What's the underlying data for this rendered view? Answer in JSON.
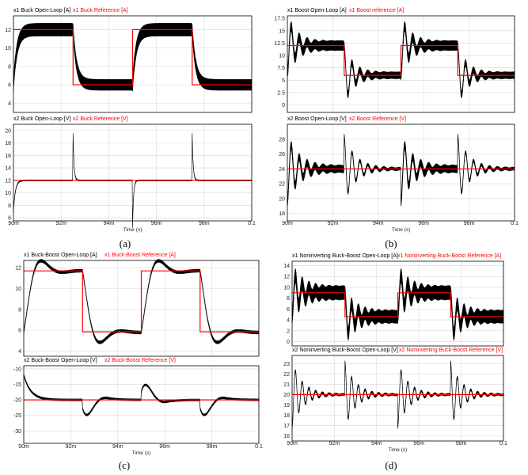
{
  "captions": [
    "(a)",
    "(b)",
    "(c)",
    "(d)"
  ],
  "chart_data": [
    {
      "type": "line",
      "panel": "(a)",
      "xlabel": "Time (s)",
      "x_ticks": [
        "90m",
        "92m",
        "94m",
        "96m",
        "98m",
        "0.1"
      ],
      "xlim": [
        0.09,
        0.1
      ],
      "subplots": [
        {
          "series": [
            {
              "name": "x1 Buck Open-Loop [A]",
              "color": "#000000"
            },
            {
              "name": "x1 Buck Reference [A]",
              "color": "#ff0000"
            }
          ],
          "ylim": [
            3,
            13.5
          ],
          "y_ticks": [
            4,
            6,
            8,
            10,
            12
          ],
          "reference": {
            "x": [
              0.09,
              0.0925,
              0.0925,
              0.095,
              0.095,
              0.0975,
              0.0975,
              0.1
            ],
            "y": [
              12,
              12,
              6,
              6,
              12,
              12,
              6,
              6
            ]
          }
        },
        {
          "series": [
            {
              "name": "x2 Buck Open-Loop [V]",
              "color": "#000000"
            },
            {
              "name": "x2 Buck Reference [V]",
              "color": "#ff0000"
            }
          ],
          "ylim": [
            5.5,
            21
          ],
          "y_ticks": [
            6,
            8,
            10,
            12,
            14,
            16,
            18,
            20
          ],
          "reference": {
            "x": [
              0.09,
              0.1
            ],
            "y": [
              12,
              12
            ]
          }
        }
      ]
    },
    {
      "type": "line",
      "panel": "(b)",
      "xlabel": "Time (s)",
      "x_ticks": [
        "90m",
        "92m",
        "94m",
        "96m",
        "98m",
        "0.1"
      ],
      "xlim": [
        0.09,
        0.1
      ],
      "subplots": [
        {
          "series": [
            {
              "name": "x1 Boost Open-Loop [A]",
              "color": "#000000"
            },
            {
              "name": "x1 Boost reference [A]",
              "color": "#ff0000"
            }
          ],
          "ylim": [
            -1.5,
            18
          ],
          "y_ticks": [
            0,
            2.5,
            5,
            7.5,
            10,
            12.5,
            15,
            17.5
          ],
          "reference": {
            "x": [
              0.09,
              0.0925,
              0.0925,
              0.095,
              0.095,
              0.0975,
              0.0975,
              0.1
            ],
            "y": [
              12,
              12,
              6,
              6,
              12,
              12,
              6,
              6
            ]
          }
        },
        {
          "series": [
            {
              "name": "x2 Boost Open-Loop [V]",
              "color": "#000000"
            },
            {
              "name": "x2 Boost Reference [V]",
              "color": "#ff0000"
            }
          ],
          "ylim": [
            17,
            30
          ],
          "y_ticks": [
            18,
            20,
            22,
            24,
            26,
            28
          ],
          "reference": {
            "x": [
              0.09,
              0.1
            ],
            "y": [
              24,
              24
            ]
          }
        }
      ]
    },
    {
      "type": "line",
      "panel": "(c)",
      "xlabel": "Time (s)",
      "x_ticks": [
        "90m",
        "92m",
        "94m",
        "96m",
        "98m",
        "0.1"
      ],
      "xlim": [
        0.09,
        0.1
      ],
      "subplots": [
        {
          "series": [
            {
              "name": "x1 Buck-Boost Open-Loop [A]",
              "color": "#000000"
            },
            {
              "name": "x1 Buck-Boost Reference [A]",
              "color": "#ff0000"
            }
          ],
          "ylim": [
            3.5,
            12.7
          ],
          "y_ticks": [
            4,
            6,
            8,
            10,
            12
          ],
          "reference": {
            "x": [
              0.09,
              0.0925,
              0.0925,
              0.095,
              0.095,
              0.0975,
              0.0975,
              0.1
            ],
            "y": [
              11.7,
              11.7,
              5.85,
              5.85,
              11.7,
              11.7,
              5.85,
              5.85
            ]
          }
        },
        {
          "series": [
            {
              "name": "x2 Buck-Boost Open-Loop [V]",
              "color": "#000000"
            },
            {
              "name": "x2 Buck-Boost Reference [V]",
              "color": "#ff0000"
            }
          ],
          "ylim": [
            -34,
            -9
          ],
          "y_ticks": [
            -30,
            -25,
            -20,
            -15,
            -10
          ],
          "reference": {
            "x": [
              0.09,
              0.1
            ],
            "y": [
              -20,
              -20
            ]
          }
        }
      ]
    },
    {
      "type": "line",
      "panel": "(d)",
      "xlabel": "Time (s)",
      "x_ticks": [
        "90m",
        "92m",
        "94m",
        "96m",
        "98m",
        "0.1"
      ],
      "xlim": [
        0.09,
        0.1
      ],
      "subplots": [
        {
          "series": [
            {
              "name": "x1 Noninverting Buck-Boost Open-Loop [A]",
              "color": "#000000"
            },
            {
              "name": "x1 Noninverting Buck-Boost Reference [A]",
              "color": "#ff0000"
            }
          ],
          "ylim": [
            -0.8,
            14.8
          ],
          "y_ticks": [
            0,
            2,
            4,
            6,
            8,
            10,
            12,
            14
          ],
          "reference": {
            "x": [
              0.09,
              0.0925,
              0.0925,
              0.095,
              0.095,
              0.0975,
              0.0975,
              0.1
            ],
            "y": [
              9,
              9,
              4.6,
              4.6,
              9,
              9,
              4.6,
              4.6
            ]
          }
        },
        {
          "series": [
            {
              "name": "x2 Noninverting Buck-Boost Open-Loop [V]",
              "color": "#000000"
            },
            {
              "name": "x2 Noninverting Buck-Boost Reference [V]",
              "color": "#ff0000"
            }
          ],
          "ylim": [
            15.5,
            23.8
          ],
          "y_ticks": [
            16,
            17,
            18,
            19,
            20,
            21,
            22,
            23
          ],
          "reference": {
            "x": [
              0.09,
              0.1
            ],
            "y": [
              20,
              20
            ]
          }
        }
      ]
    }
  ]
}
